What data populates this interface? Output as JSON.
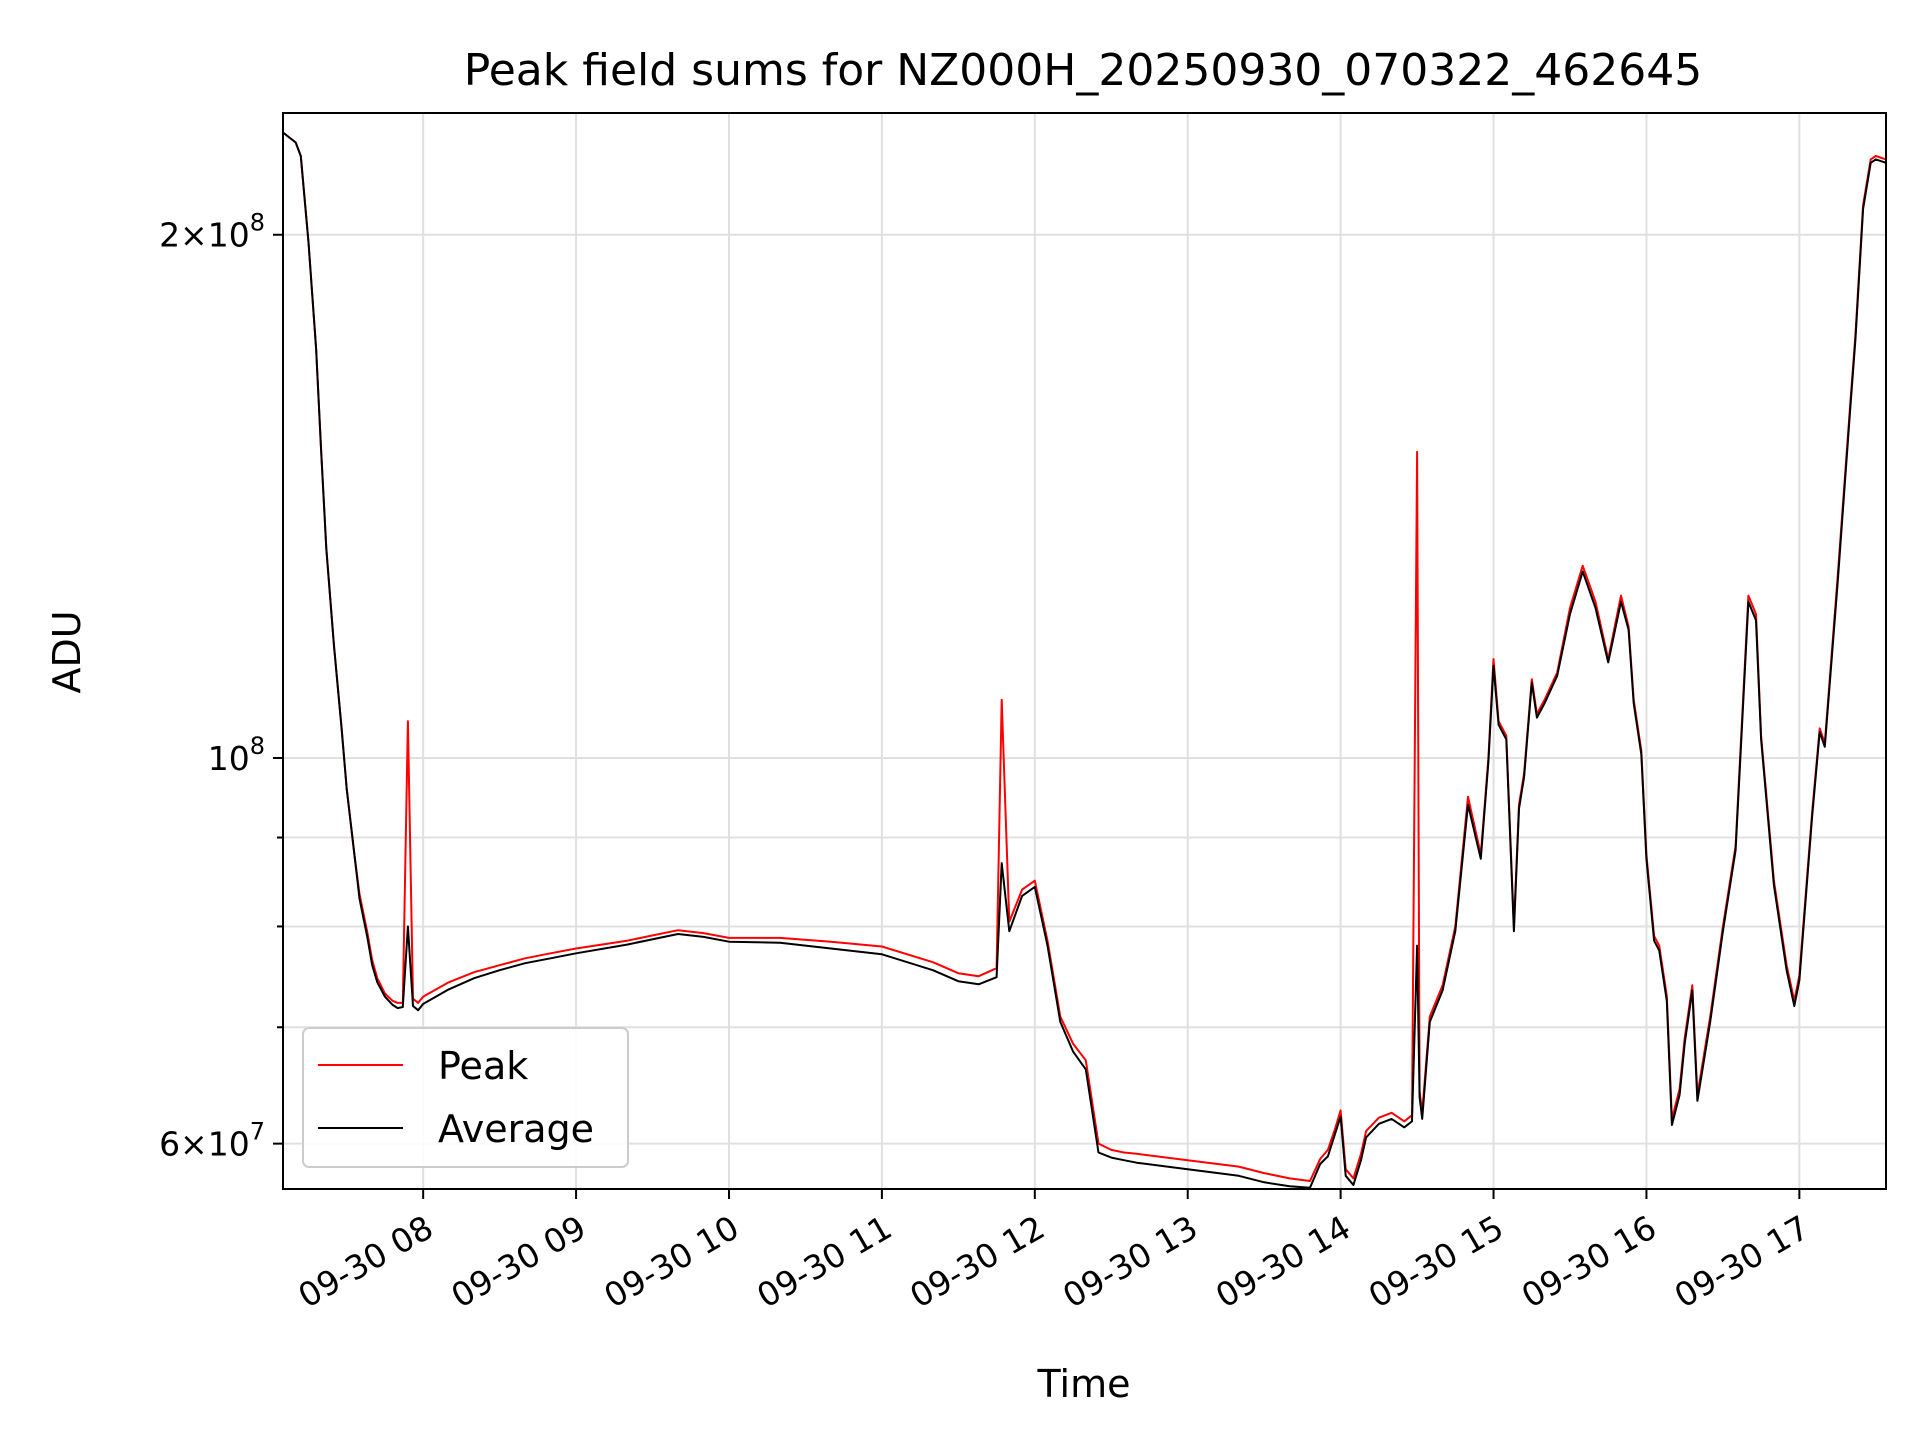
{
  "chart_data": {
    "type": "line",
    "title": "Peak field sums for NZ000H_20250930_070322_462645",
    "xlabel": "Time",
    "ylabel": "ADU",
    "y_scale": "log",
    "x_range": [
      "09-30 07:05",
      "09-30 17:34"
    ],
    "ylim": [
      56500000,
      235000000
    ],
    "grid": true,
    "legend_position": "lower-left",
    "x_ticks": [
      "09-30 08",
      "09-30 09",
      "09-30 10",
      "09-30 11",
      "09-30 12",
      "09-30 13",
      "09-30 14",
      "09-30 15",
      "09-30 16",
      "09-30 17"
    ],
    "y_ticks_major": [
      {
        "value": 100000000,
        "base": "10",
        "exp": "8",
        "mult": ""
      },
      {
        "value": 200000000,
        "base": "10",
        "exp": "8",
        "mult": "2×"
      },
      {
        "value": 60000000,
        "base": "10",
        "exp": "7",
        "mult": "6×"
      }
    ],
    "y_ticks_minor": [
      70000000,
      80000000,
      90000000
    ],
    "series": [
      {
        "name": "Peak",
        "color": "#ff0000",
        "x": [
          "07:05",
          "07:10",
          "07:12",
          "07:15",
          "07:18",
          "07:20",
          "07:22",
          "07:25",
          "07:28",
          "07:30",
          "07:33",
          "07:35",
          "07:38",
          "07:40",
          "07:42",
          "07:45",
          "07:48",
          "07:50",
          "07:52",
          "07:54",
          "07:56",
          "07:58",
          "08:00",
          "08:10",
          "08:20",
          "08:30",
          "08:40",
          "08:50",
          "09:00",
          "09:20",
          "09:40",
          "09:50",
          "10:00",
          "10:20",
          "10:40",
          "11:00",
          "11:20",
          "11:30",
          "11:38",
          "11:45",
          "11:47",
          "11:50",
          "11:55",
          "12:00",
          "12:05",
          "12:10",
          "12:15",
          "12:20",
          "12:25",
          "12:30",
          "12:35",
          "12:40",
          "13:00",
          "13:20",
          "13:30",
          "13:40",
          "13:48",
          "13:52",
          "13:55",
          "13:58",
          "14:00",
          "14:02",
          "14:05",
          "14:08",
          "14:10",
          "14:15",
          "14:20",
          "14:25",
          "14:28",
          "14:30",
          "14:31",
          "14:32",
          "14:35",
          "14:40",
          "14:45",
          "14:50",
          "14:55",
          "14:58",
          "15:00",
          "15:02",
          "15:05",
          "15:08",
          "15:10",
          "15:12",
          "15:15",
          "15:17",
          "15:20",
          "15:25",
          "15:30",
          "15:35",
          "15:40",
          "15:45",
          "15:50",
          "15:53",
          "15:55",
          "15:58",
          "16:00",
          "16:03",
          "16:05",
          "16:08",
          "16:10",
          "16:13",
          "16:15",
          "16:18",
          "16:20",
          "16:25",
          "16:30",
          "16:35",
          "16:40",
          "16:43",
          "16:45",
          "16:50",
          "16:55",
          "16:58",
          "17:00",
          "17:05",
          "17:08",
          "17:10",
          "17:15",
          "17:20",
          "17:22",
          "17:25",
          "17:28",
          "17:30",
          "17:34"
        ],
        "values": [
          229000000,
          226000000,
          222000000,
          198000000,
          172000000,
          150000000,
          132000000,
          116000000,
          104000000,
          96000000,
          88000000,
          83500000,
          79500000,
          76500000,
          74700000,
          73200000,
          72500000,
          72300000,
          72300000,
          105000000,
          72700000,
          72300000,
          72900000,
          74300000,
          75300000,
          76000000,
          76700000,
          77200000,
          77700000,
          78500000,
          79600000,
          79300000,
          78800000,
          78800000,
          78400000,
          77900000,
          76300000,
          75200000,
          74900000,
          75700000,
          108000000,
          80500000,
          84000000,
          85000000,
          78500000,
          71000000,
          68500000,
          67000000,
          60000000,
          59500000,
          59300000,
          59200000,
          58700000,
          58200000,
          57700000,
          57300000,
          57100000,
          58800000,
          59500000,
          61300000,
          62700000,
          58000000,
          57300000,
          59200000,
          61000000,
          62100000,
          62500000,
          61800000,
          62300000,
          150000000,
          64300000,
          62500000,
          71000000,
          74000000,
          80000000,
          95000000,
          88000000,
          100000000,
          114000000,
          105000000,
          103000000,
          80000000,
          94000000,
          98000000,
          111000000,
          106000000,
          108000000,
          112000000,
          122000000,
          129000000,
          123000000,
          114000000,
          124000000,
          119000000,
          108000000,
          101000000,
          88000000,
          79000000,
          78000000,
          73000000,
          62000000,
          64500000,
          69000000,
          74000000,
          64000000,
          71000000,
          80000000,
          89000000,
          124000000,
          121000000,
          103000000,
          85000000,
          76000000,
          72500000,
          75000000,
          93000000,
          104000000,
          102000000,
          127000000,
          160000000,
          175000000,
          208000000,
          221000000,
          222000000,
          221000000
        ]
      },
      {
        "name": "Average",
        "color": "#000000",
        "x": [
          "07:05",
          "07:10",
          "07:12",
          "07:15",
          "07:18",
          "07:20",
          "07:22",
          "07:25",
          "07:28",
          "07:30",
          "07:33",
          "07:35",
          "07:38",
          "07:40",
          "07:42",
          "07:45",
          "07:48",
          "07:50",
          "07:52",
          "07:54",
          "07:56",
          "07:58",
          "08:00",
          "08:10",
          "08:20",
          "08:30",
          "08:40",
          "08:50",
          "09:00",
          "09:20",
          "09:40",
          "09:50",
          "10:00",
          "10:20",
          "10:40",
          "11:00",
          "11:20",
          "11:30",
          "11:38",
          "11:45",
          "11:47",
          "11:50",
          "11:55",
          "12:00",
          "12:05",
          "12:10",
          "12:15",
          "12:20",
          "12:25",
          "12:30",
          "12:35",
          "12:40",
          "13:00",
          "13:20",
          "13:30",
          "13:40",
          "13:48",
          "13:52",
          "13:55",
          "13:58",
          "14:00",
          "14:02",
          "14:05",
          "14:08",
          "14:10",
          "14:15",
          "14:20",
          "14:25",
          "14:28",
          "14:30",
          "14:31",
          "14:32",
          "14:35",
          "14:40",
          "14:45",
          "14:50",
          "14:55",
          "14:58",
          "15:00",
          "15:02",
          "15:05",
          "15:08",
          "15:10",
          "15:12",
          "15:15",
          "15:17",
          "15:20",
          "15:25",
          "15:30",
          "15:35",
          "15:40",
          "15:45",
          "15:50",
          "15:53",
          "15:55",
          "15:58",
          "16:00",
          "16:03",
          "16:05",
          "16:08",
          "16:10",
          "16:13",
          "16:15",
          "16:18",
          "16:20",
          "16:25",
          "16:30",
          "16:35",
          "16:40",
          "16:43",
          "16:45",
          "16:50",
          "16:55",
          "16:58",
          "17:00",
          "17:05",
          "17:08",
          "17:10",
          "17:15",
          "17:20",
          "17:22",
          "17:25",
          "17:28",
          "17:30",
          "17:34"
        ],
        "values": [
          229000000,
          226000000,
          222000000,
          198000000,
          172000000,
          150000000,
          132000000,
          116000000,
          104000000,
          96000000,
          88000000,
          83000000,
          79000000,
          76000000,
          74300000,
          72900000,
          72100000,
          71800000,
          71900000,
          80000000,
          72000000,
          71600000,
          72200000,
          73600000,
          74700000,
          75500000,
          76200000,
          76700000,
          77200000,
          78100000,
          79200000,
          78900000,
          78400000,
          78300000,
          77700000,
          77100000,
          75500000,
          74400000,
          74100000,
          74800000,
          87000000,
          79500000,
          83300000,
          84300000,
          78000000,
          70500000,
          67800000,
          66200000,
          59300000,
          58900000,
          58700000,
          58500000,
          58000000,
          57500000,
          57000000,
          56700000,
          56600000,
          58400000,
          59000000,
          60900000,
          62200000,
          57500000,
          56800000,
          58700000,
          60500000,
          61600000,
          62000000,
          61300000,
          61800000,
          78000000,
          63800000,
          62000000,
          70500000,
          73500000,
          79500000,
          94000000,
          87500000,
          99500000,
          113000000,
          104500000,
          102500000,
          79500000,
          93500000,
          97500000,
          110500000,
          105500000,
          107500000,
          111500000,
          121000000,
          128000000,
          122000000,
          113500000,
          123000000,
          118500000,
          107500000,
          100500000,
          87500000,
          78500000,
          77500000,
          72500000,
          61500000,
          64000000,
          68500000,
          73500000,
          63500000,
          70500000,
          79500000,
          88500000,
          123000000,
          120000000,
          102500000,
          84500000,
          75500000,
          72000000,
          74500000,
          92500000,
          103500000,
          101500000,
          126000000,
          159000000,
          174000000,
          207000000,
          220000000,
          221000000,
          220000000
        ]
      }
    ]
  }
}
